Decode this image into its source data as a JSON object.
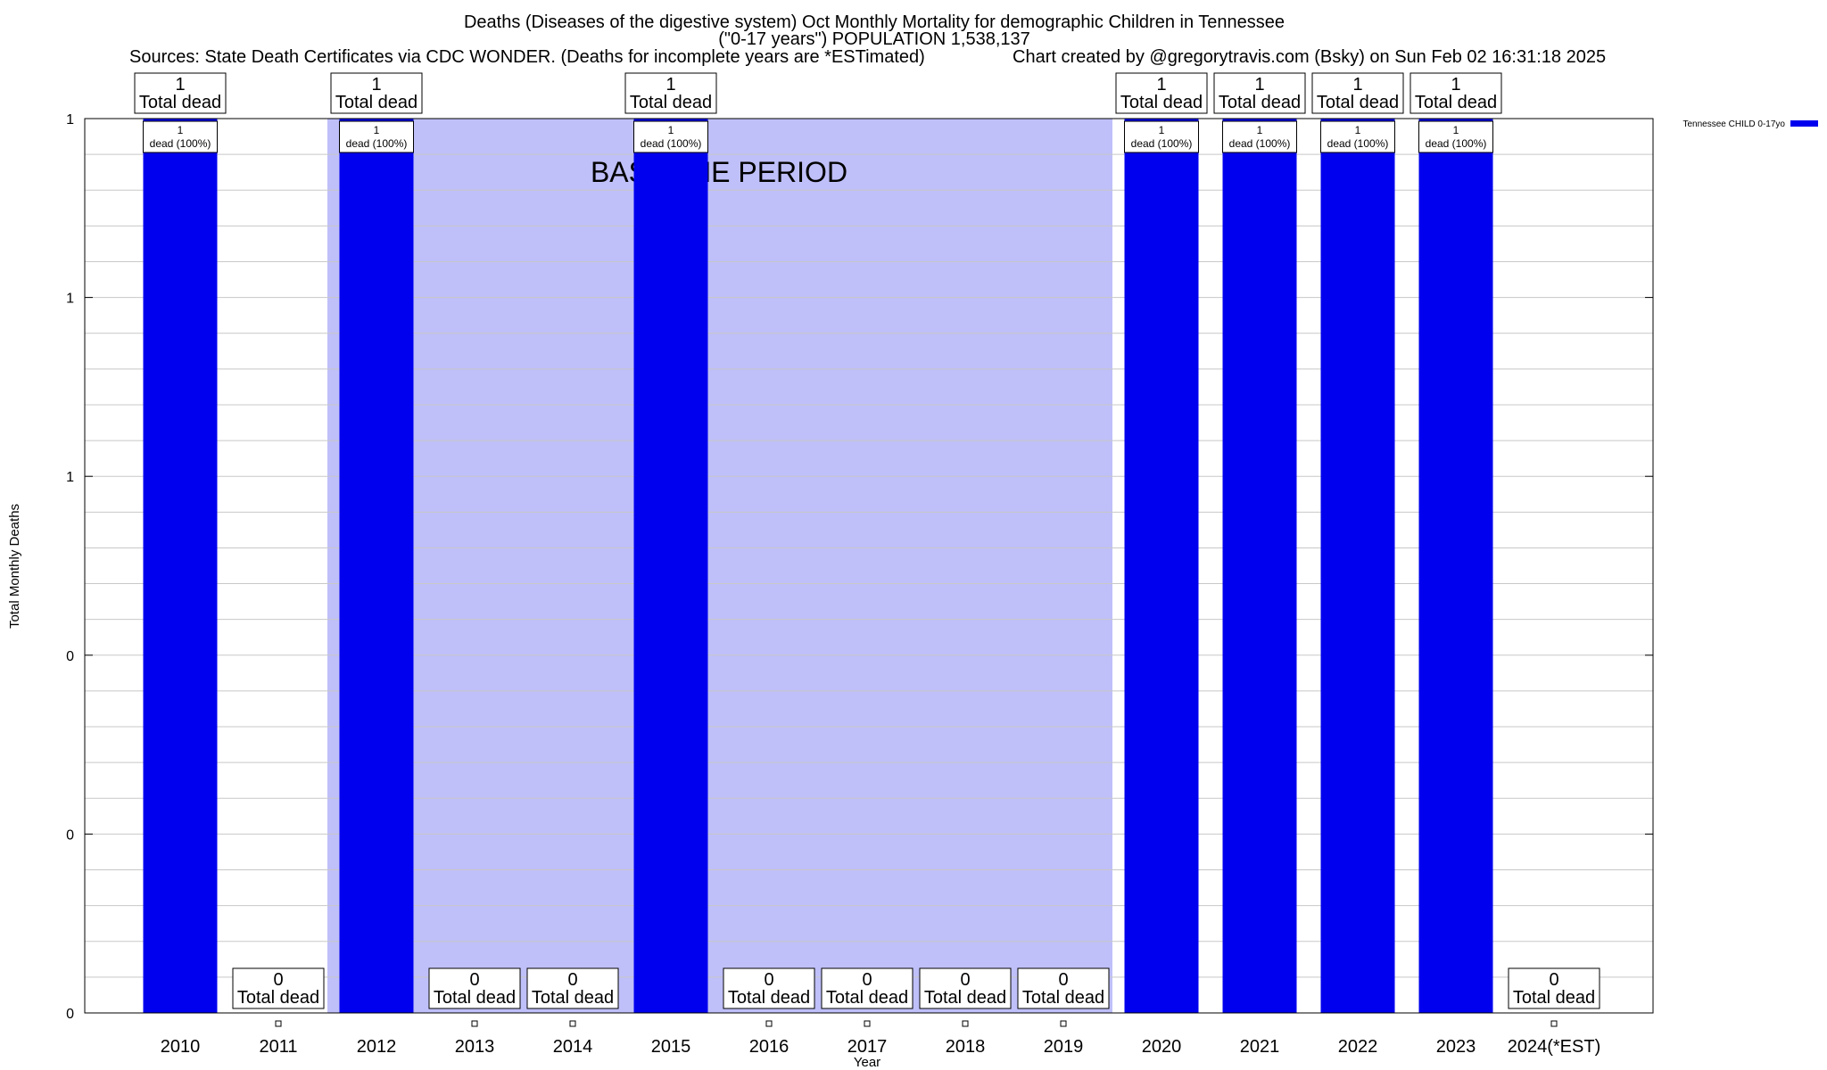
{
  "header": {
    "title_line1": "Deaths (Diseases of the digestive system) Oct Monthly Mortality for demographic Children in Tennessee",
    "title_line2": "(\"0-17 years\") POPULATION 1,538,137",
    "sources": "Sources: State Death Certificates via CDC WONDER. (Deaths for incomplete years are *ESTimated)",
    "credit": "Chart created by @gregorytravis.com (Bsky) on Sun Feb 02 16:31:18 2025"
  },
  "colors": {
    "bar": "#0000ee",
    "baseline_shade": "#bfbff9",
    "grid": "#c8c8c8"
  },
  "chart_data": {
    "type": "bar",
    "xlabel": "Year",
    "ylabel": "Total Monthly Deaths",
    "categories": [
      "2010",
      "2011",
      "2012",
      "2013",
      "2014",
      "2015",
      "2016",
      "2017",
      "2018",
      "2019",
      "2020",
      "2021",
      "2022",
      "2023",
      "2024(*EST)"
    ],
    "values": [
      1,
      0,
      1,
      0,
      0,
      1,
      0,
      0,
      0,
      0,
      1,
      1,
      1,
      1,
      0
    ],
    "ylim": [
      0,
      1
    ],
    "y_tick_labels": [
      "0",
      "0",
      "0",
      "1",
      "1",
      "1"
    ],
    "top_label_text": "Total dead",
    "inner_label_text": "dead (100%)",
    "baseline_label": "BASELINE PERIOD",
    "baseline_range": [
      "2012",
      "2019"
    ],
    "legend": {
      "label": "Tennessee CHILD 0-17yo",
      "placement": "top-right"
    },
    "grid": true
  }
}
